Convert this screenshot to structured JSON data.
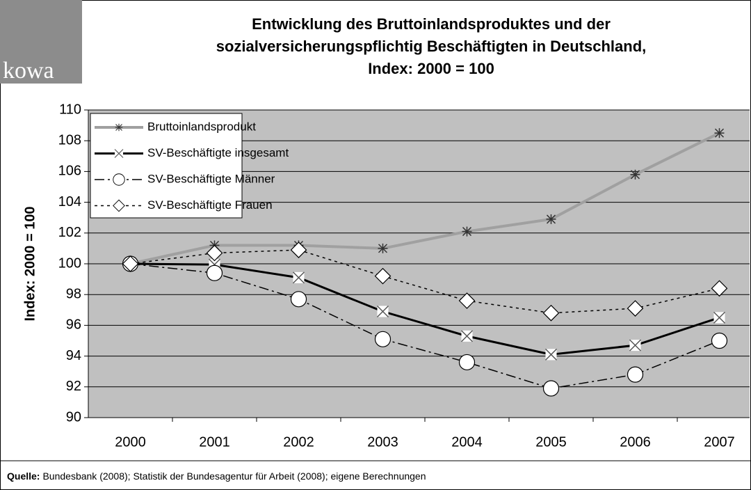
{
  "logo": "kowa",
  "source": {
    "label": "Quelle:",
    "text": "Bundesbank (2008); Statistik der Bundesagentur für Arbeit (2008); eigene Berechnungen"
  },
  "chart_data": {
    "type": "line",
    "title": [
      "Entwicklung des Bruttoinlandsproduktes und der",
      "sozialversicherungspflichtig Beschäftigten in Deutschland,",
      "Index: 2000 = 100"
    ],
    "y_label": "Index: 2000 = 100",
    "categories": [
      "2000",
      "2001",
      "2002",
      "2003",
      "2004",
      "2005",
      "2006",
      "2007"
    ],
    "ylim": [
      90,
      110
    ],
    "yticks": [
      90,
      92,
      94,
      96,
      98,
      100,
      102,
      104,
      106,
      108,
      110
    ],
    "grid": true,
    "legend": "upper left",
    "series": [
      {
        "name": "Bruttoinlandsprodukt",
        "color": "#a0a0a0",
        "marker": "asterisk",
        "line_style": "solid",
        "values": [
          100,
          101.2,
          101.2,
          101.0,
          102.1,
          102.9,
          105.8,
          108.5
        ]
      },
      {
        "name": "SV-Beschäftigte insgesamt",
        "color": "#000000",
        "marker": "x",
        "line_style": "solid",
        "values": [
          100,
          99.95,
          99.1,
          96.9,
          95.3,
          94.1,
          94.7,
          96.5
        ]
      },
      {
        "name": "SV-Beschäftigte Männer",
        "color": "#000000",
        "marker": "circle",
        "line_style": "dashdot",
        "values": [
          100,
          99.4,
          97.7,
          95.1,
          93.6,
          91.9,
          92.8,
          95.0
        ]
      },
      {
        "name": "SV-Beschäftigte Frauen",
        "color": "#000000",
        "marker": "diamond",
        "line_style": "dotted",
        "values": [
          100,
          100.7,
          100.9,
          99.2,
          97.6,
          96.8,
          97.1,
          98.4
        ]
      }
    ]
  }
}
